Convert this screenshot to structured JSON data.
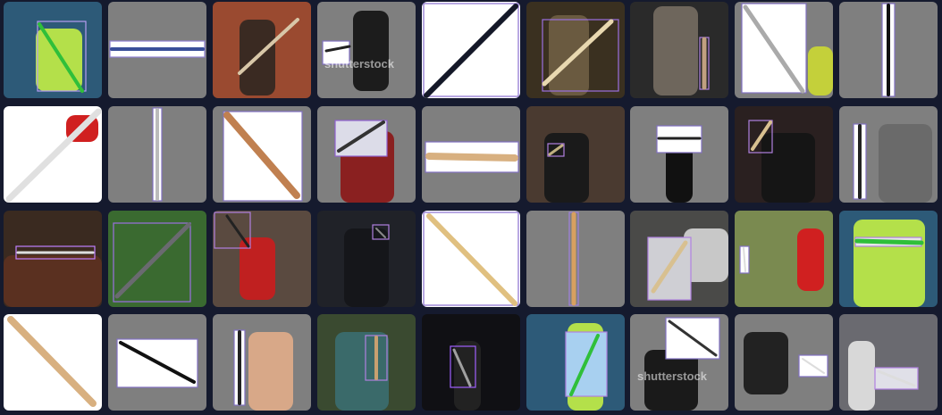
{
  "watermarks": [
    "shutterstock",
    "shutterstock"
  ]
}
